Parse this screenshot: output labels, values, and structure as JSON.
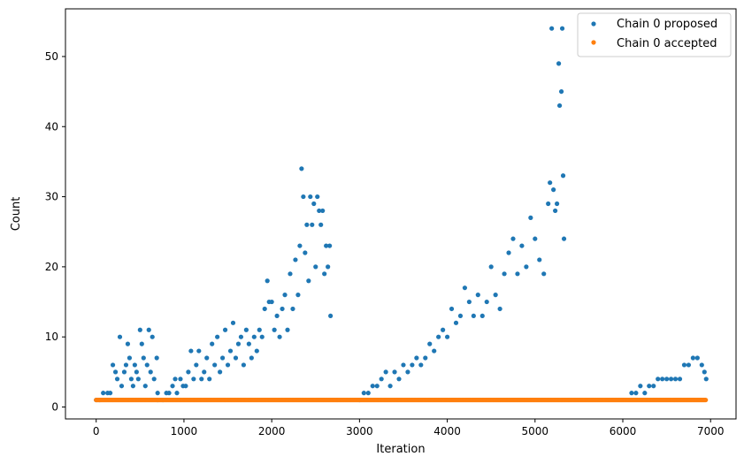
{
  "chart_data": {
    "type": "scatter",
    "xlabel": "Iteration",
    "ylabel": "Count",
    "xlim": [
      -350,
      7290
    ],
    "ylim": [
      -1.7,
      56.8
    ],
    "x_ticks": [
      0,
      1000,
      2000,
      3000,
      4000,
      5000,
      6000,
      7000
    ],
    "y_ticks": [
      0,
      10,
      20,
      30,
      40,
      50
    ],
    "legend_position": "top-right",
    "grid": false,
    "series": [
      {
        "name": "Chain 0 proposed",
        "color": "#1f77b4",
        "points": [
          [
            0,
            1
          ],
          [
            40,
            1
          ],
          [
            80,
            2
          ],
          [
            130,
            2
          ],
          [
            160,
            2
          ],
          [
            190,
            6
          ],
          [
            220,
            5
          ],
          [
            240,
            4
          ],
          [
            270,
            10
          ],
          [
            290,
            3
          ],
          [
            320,
            5
          ],
          [
            340,
            6
          ],
          [
            360,
            9
          ],
          [
            380,
            7
          ],
          [
            400,
            4
          ],
          [
            420,
            3
          ],
          [
            440,
            6
          ],
          [
            460,
            5
          ],
          [
            480,
            4
          ],
          [
            500,
            11
          ],
          [
            520,
            9
          ],
          [
            540,
            7
          ],
          [
            560,
            3
          ],
          [
            580,
            6
          ],
          [
            600,
            11
          ],
          [
            620,
            5
          ],
          [
            640,
            10
          ],
          [
            660,
            4
          ],
          [
            690,
            7
          ],
          [
            700,
            2
          ],
          [
            700,
            1
          ],
          [
            760,
            1
          ],
          [
            800,
            2
          ],
          [
            830,
            2
          ],
          [
            870,
            3
          ],
          [
            900,
            4
          ],
          [
            920,
            2
          ],
          [
            960,
            4
          ],
          [
            990,
            3
          ],
          [
            1020,
            3
          ],
          [
            1050,
            5
          ],
          [
            1080,
            8
          ],
          [
            1110,
            4
          ],
          [
            1140,
            6
          ],
          [
            1170,
            8
          ],
          [
            1200,
            4
          ],
          [
            1230,
            5
          ],
          [
            1260,
            7
          ],
          [
            1290,
            4
          ],
          [
            1320,
            9
          ],
          [
            1350,
            6
          ],
          [
            1380,
            10
          ],
          [
            1410,
            5
          ],
          [
            1440,
            7
          ],
          [
            1470,
            11
          ],
          [
            1500,
            6
          ],
          [
            1530,
            8
          ],
          [
            1560,
            12
          ],
          [
            1590,
            7
          ],
          [
            1620,
            9
          ],
          [
            1650,
            10
          ],
          [
            1680,
            6
          ],
          [
            1710,
            11
          ],
          [
            1740,
            9
          ],
          [
            1770,
            7
          ],
          [
            1800,
            10
          ],
          [
            1830,
            8
          ],
          [
            1860,
            11
          ],
          [
            1890,
            10
          ],
          [
            1920,
            14
          ],
          [
            1950,
            18
          ],
          [
            1970,
            15
          ],
          [
            2000,
            15
          ],
          [
            2030,
            11
          ],
          [
            2060,
            13
          ],
          [
            2090,
            10
          ],
          [
            2120,
            14
          ],
          [
            2150,
            16
          ],
          [
            2180,
            11
          ],
          [
            2210,
            19
          ],
          [
            2240,
            14
          ],
          [
            2270,
            21
          ],
          [
            2300,
            16
          ],
          [
            2320,
            23
          ],
          [
            2340,
            34
          ],
          [
            2360,
            30
          ],
          [
            2380,
            22
          ],
          [
            2400,
            26
          ],
          [
            2420,
            18
          ],
          [
            2440,
            30
          ],
          [
            2460,
            26
          ],
          [
            2480,
            29
          ],
          [
            2500,
            20
          ],
          [
            2520,
            30
          ],
          [
            2540,
            28
          ],
          [
            2560,
            26
          ],
          [
            2580,
            28
          ],
          [
            2600,
            19
          ],
          [
            2620,
            23
          ],
          [
            2640,
            20
          ],
          [
            2660,
            23
          ],
          [
            2670,
            13
          ],
          [
            3000,
            1
          ],
          [
            3050,
            2
          ],
          [
            3100,
            2
          ],
          [
            3150,
            3
          ],
          [
            3200,
            3
          ],
          [
            3250,
            4
          ],
          [
            3300,
            5
          ],
          [
            3350,
            3
          ],
          [
            3400,
            5
          ],
          [
            3450,
            4
          ],
          [
            3500,
            6
          ],
          [
            3550,
            5
          ],
          [
            3600,
            6
          ],
          [
            3650,
            7
          ],
          [
            3700,
            6
          ],
          [
            3750,
            7
          ],
          [
            3800,
            9
          ],
          [
            3850,
            8
          ],
          [
            3900,
            10
          ],
          [
            3950,
            11
          ],
          [
            4000,
            10
          ],
          [
            4050,
            14
          ],
          [
            4100,
            12
          ],
          [
            4150,
            13
          ],
          [
            4200,
            17
          ],
          [
            4250,
            15
          ],
          [
            4300,
            13
          ],
          [
            4350,
            16
          ],
          [
            4400,
            13
          ],
          [
            4450,
            15
          ],
          [
            4500,
            20
          ],
          [
            4550,
            16
          ],
          [
            4600,
            14
          ],
          [
            4650,
            19
          ],
          [
            4700,
            22
          ],
          [
            4750,
            24
          ],
          [
            4800,
            19
          ],
          [
            4850,
            23
          ],
          [
            4900,
            20
          ],
          [
            4950,
            27
          ],
          [
            5000,
            24
          ],
          [
            5050,
            21
          ],
          [
            5100,
            19
          ],
          [
            5150,
            29
          ],
          [
            5170,
            32
          ],
          [
            5190,
            54
          ],
          [
            5210,
            31
          ],
          [
            5230,
            28
          ],
          [
            5250,
            29
          ],
          [
            5270,
            49
          ],
          [
            5280,
            43
          ],
          [
            5300,
            45
          ],
          [
            5310,
            54
          ],
          [
            5320,
            33
          ],
          [
            5330,
            24
          ],
          [
            6100,
            2
          ],
          [
            6150,
            2
          ],
          [
            6200,
            3
          ],
          [
            6250,
            2
          ],
          [
            6300,
            3
          ],
          [
            6350,
            3
          ],
          [
            6400,
            4
          ],
          [
            6450,
            4
          ],
          [
            6500,
            4
          ],
          [
            6550,
            4
          ],
          [
            6600,
            4
          ],
          [
            6650,
            4
          ],
          [
            6700,
            6
          ],
          [
            6750,
            6
          ],
          [
            6800,
            7
          ],
          [
            6850,
            7
          ],
          [
            6900,
            6
          ],
          [
            6930,
            5
          ],
          [
            6950,
            4
          ]
        ]
      },
      {
        "name": "Chain 0 accepted",
        "color": "#ff7f0e",
        "points": [
          [
            0,
            1
          ],
          [
            6950,
            1
          ]
        ]
      }
    ]
  }
}
